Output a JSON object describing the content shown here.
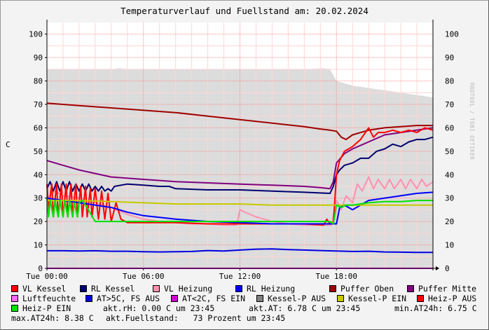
{
  "title": "Temperaturverlauf und Fuellstand am: 20.02.2024",
  "watermark": "RRDTOOL / TOBI OETIKER",
  "colors": {
    "background": "#f3f3f3",
    "plot_background": "#ffffff",
    "grid_major": "#ff8c8c",
    "grid_minor": "#ffd6d6",
    "fill_level_area": "#dcdcdc",
    "axis": "#000000",
    "baseline": "#d400d4"
  },
  "chart_data": {
    "type": "line",
    "title": "Temperaturverlauf und Fuellstand am: 20.02.2024",
    "xlabel": "",
    "ylabel": "C",
    "xlim": [
      0,
      24
    ],
    "ylim": [
      0,
      105
    ],
    "x_unit": "hours",
    "xticks": [
      {
        "value": 0,
        "label": "Tue 00:00"
      },
      {
        "value": 6,
        "label": "Tue 06:00"
      },
      {
        "value": 12,
        "label": "Tue 12:00"
      },
      {
        "value": 18,
        "label": "Tue 18:00"
      }
    ],
    "yticks": [
      0,
      10,
      20,
      30,
      40,
      50,
      60,
      70,
      80,
      90,
      100
    ],
    "grid": true,
    "legend_position": "bottom",
    "series": [
      {
        "name": "Kessel-P EIN / Fuellstand",
        "color": "#d8d8d8",
        "type": "area",
        "x": [
          0,
          4,
          4.5,
          5,
          6,
          10,
          12,
          14,
          16,
          17.2,
          17.6,
          18,
          19,
          20,
          21,
          22,
          23,
          24
        ],
        "y": [
          85,
          85,
          85.5,
          85,
          85,
          85,
          85,
          85,
          85,
          85.5,
          85,
          80,
          78,
          77,
          76,
          75,
          74,
          73
        ]
      },
      {
        "name": "Puffer Oben",
        "color": "#a00000",
        "x": [
          0,
          2,
          4,
          6,
          8,
          10,
          12,
          14,
          16,
          17,
          17.6,
          18,
          18.3,
          18.6,
          19,
          20,
          21,
          22,
          23,
          24
        ],
        "y": [
          70.5,
          69.5,
          68.5,
          67.5,
          66.5,
          65,
          63.5,
          62,
          60.5,
          59.5,
          59,
          58.5,
          56,
          55,
          57,
          59,
          60,
          60.5,
          61,
          61
        ]
      },
      {
        "name": "Puffer Mitte",
        "color": "#800080",
        "x": [
          0,
          1,
          2,
          3,
          4,
          6,
          8,
          10,
          12,
          14,
          16,
          17,
          17.6,
          17.8,
          18,
          18.5,
          19,
          20,
          21,
          22,
          23,
          24
        ],
        "y": [
          46,
          44,
          42,
          40.5,
          39,
          38,
          37,
          36.5,
          36,
          35.5,
          35,
          34.5,
          34,
          37,
          45,
          49,
          51,
          54,
          57,
          58,
          59,
          60
        ]
      },
      {
        "name": "RL Kessel",
        "color": "#000070",
        "x": [
          0,
          0.2,
          0.4,
          0.6,
          0.8,
          1.0,
          1.2,
          1.4,
          1.6,
          1.8,
          2.0,
          2.2,
          2.4,
          2.6,
          2.8,
          3.0,
          3.2,
          3.4,
          3.6,
          3.8,
          4.0,
          4.2,
          5,
          6,
          7,
          7.6,
          8,
          10,
          12,
          14,
          16,
          17.6,
          17.8,
          18,
          18.2,
          18.5,
          19,
          19.5,
          20,
          20.5,
          21,
          21.5,
          22,
          22.5,
          23,
          23.5,
          24
        ],
        "y": [
          34,
          37,
          33,
          37,
          33,
          37,
          33,
          37,
          33,
          36,
          33,
          36,
          33,
          36,
          33,
          35,
          33,
          35,
          33,
          34,
          33,
          35,
          36,
          35.5,
          35,
          35,
          34,
          33.5,
          33.5,
          33,
          32.5,
          32,
          35,
          40,
          42,
          44,
          45,
          47,
          47,
          50,
          51,
          53,
          52,
          54,
          55,
          55,
          56
        ]
      },
      {
        "name": "VL Heizung",
        "color": "#ff90b0",
        "x": [
          0,
          0.5,
          1,
          2,
          3,
          4,
          5,
          6,
          7,
          8,
          9,
          10,
          11,
          11.8,
          12,
          12.3,
          13,
          14,
          15,
          16,
          17,
          17.7,
          18,
          18.3,
          18.6,
          19,
          19.3,
          19.6,
          20,
          20.3,
          20.6,
          21,
          21.3,
          21.6,
          22,
          22.3,
          22.6,
          23,
          23.3,
          23.6,
          24
        ],
        "y": [
          30,
          33,
          31,
          30,
          28,
          26,
          23,
          21,
          20,
          19.5,
          19,
          19,
          18.5,
          18.5,
          25,
          24,
          22,
          20,
          19,
          18.5,
          18.5,
          18.5,
          29,
          25,
          31,
          28,
          36,
          33,
          39,
          34,
          38,
          34,
          38,
          34,
          38,
          34,
          38,
          34,
          38,
          35,
          37
        ]
      },
      {
        "name": "VL Kessel",
        "color": "#ff0000",
        "x": [
          0,
          0.1,
          0.3,
          0.4,
          0.6,
          0.7,
          0.9,
          1.0,
          1.2,
          1.3,
          1.5,
          1.6,
          1.8,
          1.9,
          2.1,
          2.2,
          2.4,
          2.5,
          2.7,
          2.8,
          3.0,
          3.2,
          3.4,
          3.6,
          3.8,
          4.0,
          4.3,
          4.6,
          5,
          6,
          8,
          10,
          12,
          14,
          16,
          17.2,
          17.4,
          17.6,
          17.8,
          18,
          18.2,
          18.5,
          19,
          19.5,
          20,
          20.3,
          20.6,
          21,
          21.5,
          22,
          22.5,
          23,
          23.5,
          24
        ],
        "y": [
          36,
          25,
          36,
          22,
          36,
          22,
          36,
          22,
          36,
          22,
          36,
          22,
          36,
          22,
          35,
          22,
          35,
          22,
          34,
          22,
          34,
          21,
          33,
          21,
          32,
          20,
          28,
          21,
          19.5,
          19.5,
          19.5,
          19,
          19,
          19,
          19,
          18.5,
          21,
          19,
          19,
          40,
          46,
          50,
          52,
          55,
          60,
          56,
          58,
          58,
          59,
          58,
          59,
          58,
          60,
          59
        ]
      },
      {
        "name": "RL Heizung",
        "color": "#0000ff",
        "x": [
          0,
          1,
          2,
          3,
          4,
          5,
          6,
          8,
          10,
          12,
          14,
          16,
          17.5,
          18,
          18.2,
          18.5,
          19,
          19.5,
          20,
          21,
          22,
          23,
          24
        ],
        "y": [
          30,
          29,
          28,
          27,
          26,
          24,
          22.5,
          21,
          20,
          19.5,
          19,
          19,
          19,
          19,
          26,
          27,
          25,
          27,
          29,
          30,
          31,
          32,
          32.5
        ]
      },
      {
        "name": "Kessel-P EIN",
        "color": "#c8c800",
        "x": [
          0,
          2,
          4,
          6,
          8,
          10,
          12,
          14,
          16,
          18,
          20,
          22,
          24
        ],
        "y": [
          29,
          29,
          28.5,
          28,
          27.5,
          27.5,
          27.5,
          27,
          27,
          27,
          27,
          27,
          27
        ]
      },
      {
        "name": "Heiz-P EIN",
        "color": "#00e000",
        "x": [
          0,
          0.1,
          0.2,
          0.4,
          0.5,
          0.7,
          0.8,
          1.0,
          1.1,
          1.3,
          1.4,
          1.6,
          1.7,
          1.9,
          2.0,
          2.2,
          2.4,
          3.0,
          17.6,
          17.8,
          18,
          18.3,
          18.6,
          19,
          20,
          21,
          22,
          23,
          24
        ],
        "y": [
          30,
          22,
          29,
          22,
          29,
          22,
          29,
          22,
          29,
          22,
          29,
          22,
          28,
          22,
          28,
          29,
          27,
          20,
          20,
          19,
          27,
          26,
          27,
          27,
          28,
          28.5,
          28.5,
          29,
          29
        ]
      },
      {
        "name": "AT>5C, FS AUS",
        "color": "#0000e0",
        "x": [
          0,
          1,
          2,
          3,
          4,
          5,
          6,
          7,
          8,
          9,
          10,
          11,
          12,
          13,
          14,
          15,
          16,
          17,
          18,
          19,
          20,
          21,
          22,
          23,
          24
        ],
        "y": [
          7.5,
          7.5,
          7.4,
          7.5,
          7.3,
          7.3,
          7.1,
          7.0,
          7.1,
          7.2,
          7.6,
          7.4,
          7.8,
          8.2,
          8.3,
          8.0,
          7.8,
          7.6,
          7.4,
          7.2,
          7.3,
          7.0,
          6.9,
          6.8,
          6.8
        ]
      },
      {
        "name": "Luftfeuchte",
        "color": "#d400d4",
        "x": [
          0,
          24
        ],
        "y": [
          0,
          0
        ]
      }
    ]
  },
  "legend": [
    {
      "label": "VL Kessel",
      "color": "#ff0000"
    },
    {
      "label": "RL Kessel",
      "color": "#000070"
    },
    {
      "label": "VL Heizung",
      "color": "#ff90b0"
    },
    {
      "label": "RL Heizung",
      "color": "#0000ff"
    },
    {
      "label": "Puffer Oben",
      "color": "#a00000"
    },
    {
      "label": "Puffer Mitte",
      "color": "#800080"
    },
    {
      "label": "Luftfeuchte",
      "color": "#ff66ff"
    },
    {
      "label": "AT>5C, FS AUS",
      "color": "#0000e0"
    },
    {
      "label": "AT<2C, FS EIN",
      "color": "#d400d4"
    },
    {
      "label": "Kessel-P AUS",
      "color": "#808080"
    },
    {
      "label": "Kessel-P EIN",
      "color": "#c8c800"
    },
    {
      "label": "Heiz-P AUS",
      "color": "#ff0000"
    },
    {
      "label": "Heiz-P EIN",
      "color": "#00e000"
    }
  ],
  "stats": {
    "akt_rh": "akt.rH: 0.00 C um 23:45",
    "akt_at": "akt.AT: 6.78 C um 23:45",
    "min_at24h": "min.AT24h: 6.75 C",
    "max_at24h": "max.AT24h: 8.38 C",
    "akt_fuellstand": "akt.Fuellstand:   73 Prozent um 23:45"
  }
}
